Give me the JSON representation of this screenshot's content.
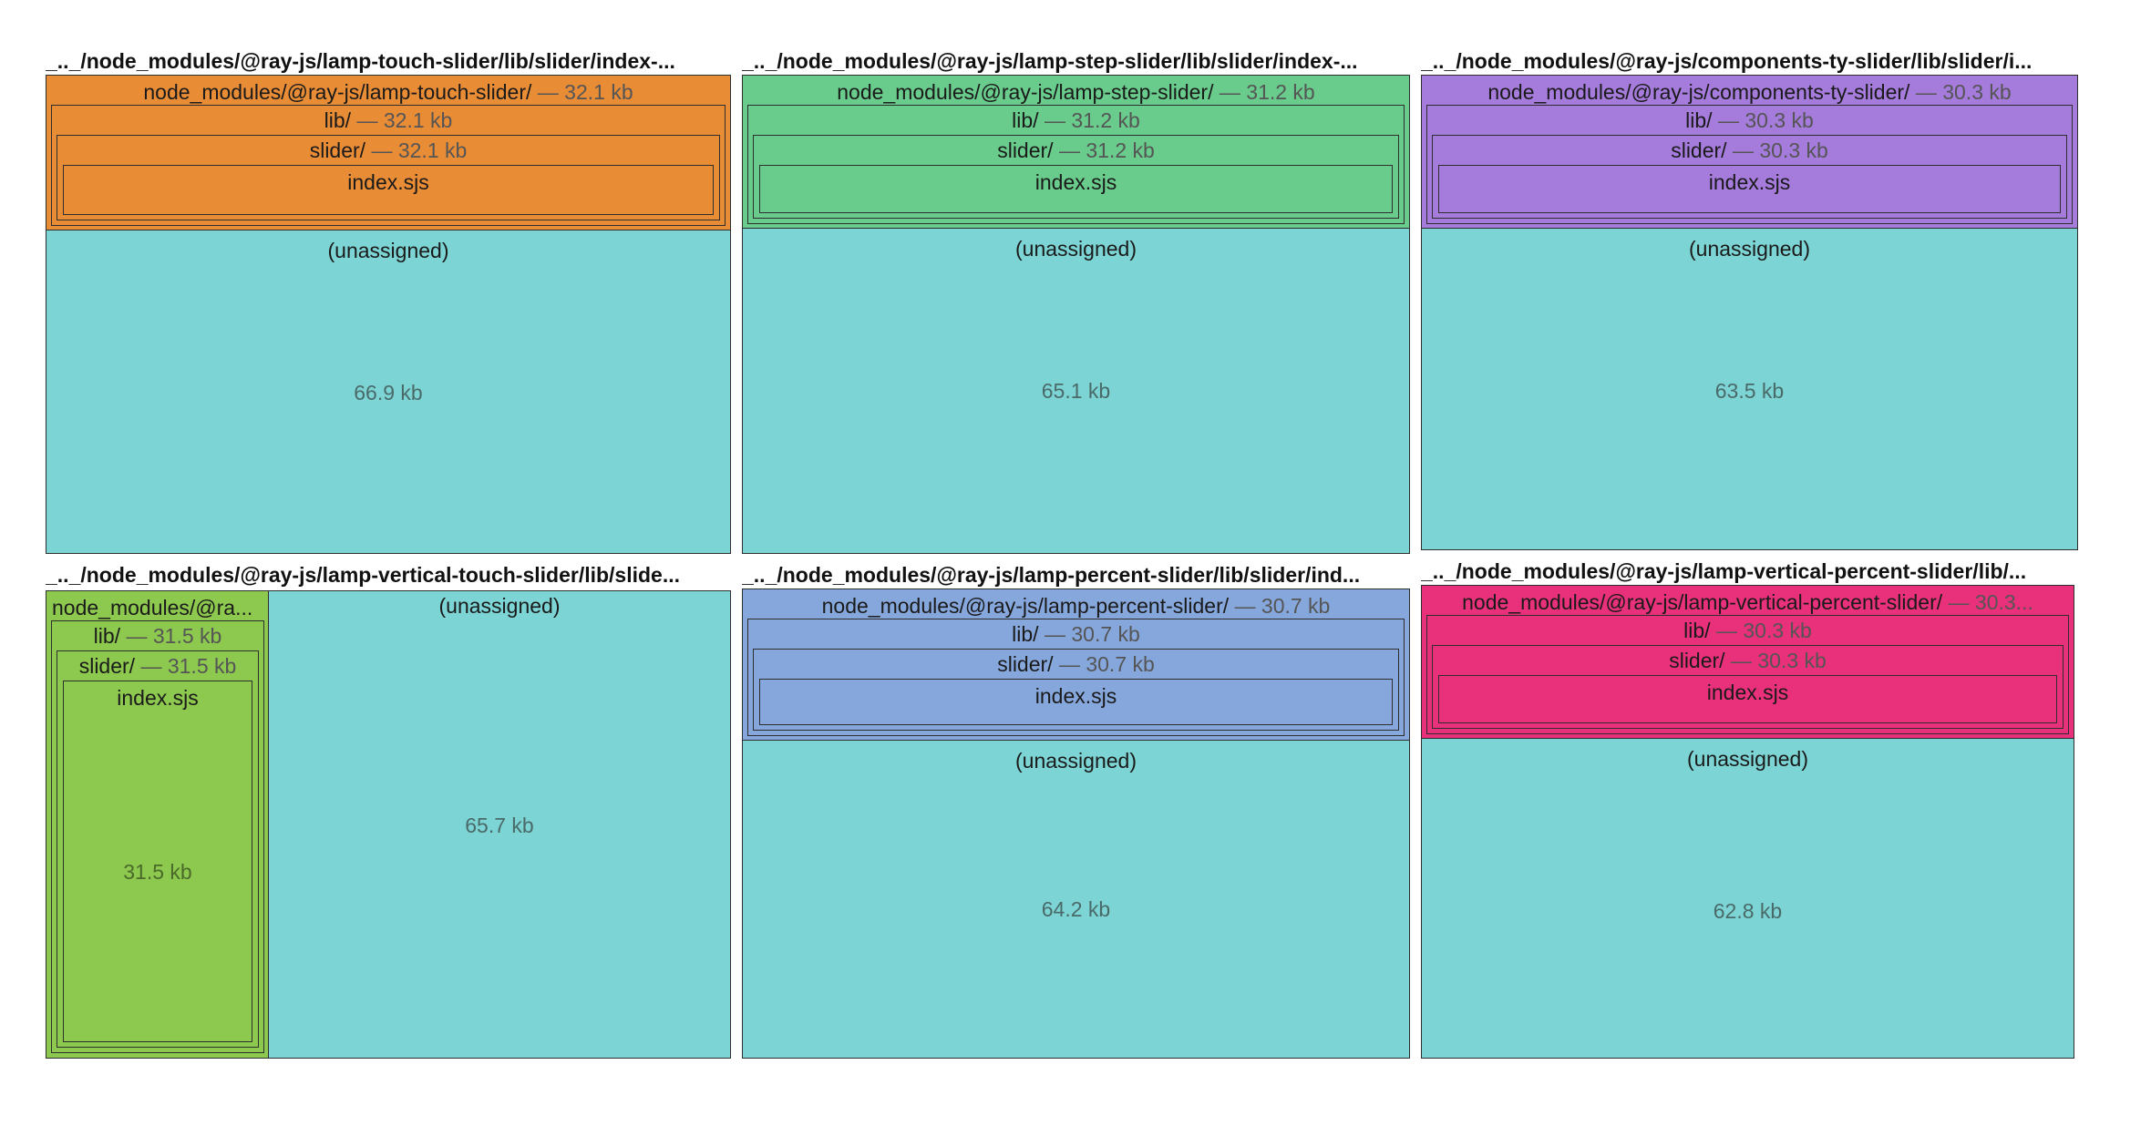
{
  "colors": {
    "unassigned": "#7dd4d4",
    "orange": "#e98c36",
    "green": "#69cc8c",
    "purple": "#a57bdc",
    "lime": "#8ec94f",
    "blue": "#86a7dc",
    "pink": "#e8317a"
  },
  "panels": [
    {
      "title": "_.._/node_modules/@ray-js/lamp-touch-slider/lib/slider/index-...",
      "module": "node_modules/@ray-js/lamp-touch-slider/",
      "module_size": "— 32.1 kb",
      "lib": "lib/",
      "lib_size": "— 32.1 kb",
      "slider": "slider/",
      "slider_size": "— 32.1 kb",
      "file": "index.sjs",
      "unassigned": "(unassigned)",
      "unassigned_size": "66.9 kb"
    },
    {
      "title": "_.._/node_modules/@ray-js/lamp-step-slider/lib/slider/index-...",
      "module": "node_modules/@ray-js/lamp-step-slider/",
      "module_size": "— 31.2 kb",
      "lib": "lib/",
      "lib_size": "— 31.2 kb",
      "slider": "slider/",
      "slider_size": "— 31.2 kb",
      "file": "index.sjs",
      "unassigned": "(unassigned)",
      "unassigned_size": "65.1 kb"
    },
    {
      "title": "_.._/node_modules/@ray-js/components-ty-slider/lib/slider/i...",
      "module": "node_modules/@ray-js/components-ty-slider/",
      "module_size": "— 30.3 kb",
      "lib": "lib/",
      "lib_size": "— 30.3 kb",
      "slider": "slider/",
      "slider_size": "— 30.3 kb",
      "file": "index.sjs",
      "unassigned": "(unassigned)",
      "unassigned_size": "63.5 kb"
    },
    {
      "title": "_.._/node_modules/@ray-js/lamp-vertical-touch-slider/lib/slide...",
      "module": "node_modules/@ra...",
      "lib": "lib/",
      "lib_size": "— 31.5 kb",
      "slider": "slider/",
      "slider_size": "— 31.5 kb",
      "file": "index.sjs",
      "file_size": "31.5 kb",
      "unassigned": "(unassigned)",
      "unassigned_size": "65.7 kb"
    },
    {
      "title": "_.._/node_modules/@ray-js/lamp-percent-slider/lib/slider/ind...",
      "module": "node_modules/@ray-js/lamp-percent-slider/",
      "module_size": "— 30.7 kb",
      "lib": "lib/",
      "lib_size": "— 30.7 kb",
      "slider": "slider/",
      "slider_size": "— 30.7 kb",
      "file": "index.sjs",
      "unassigned": "(unassigned)",
      "unassigned_size": "64.2 kb"
    },
    {
      "title": "_.._/node_modules/@ray-js/lamp-vertical-percent-slider/lib/...",
      "module": "node_modules/@ray-js/lamp-vertical-percent-slider/",
      "module_size": "— 30.3...",
      "lib": "lib/",
      "lib_size": "— 30.3 kb",
      "slider": "slider/",
      "slider_size": "— 30.3 kb",
      "file": "index.sjs",
      "unassigned": "(unassigned)",
      "unassigned_size": "62.8 kb"
    }
  ]
}
